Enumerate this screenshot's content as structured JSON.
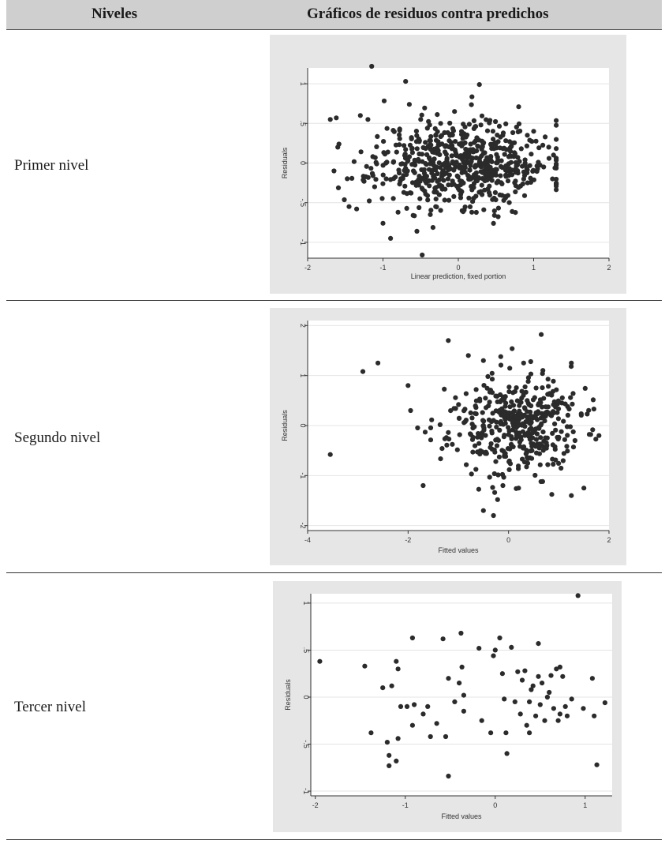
{
  "table": {
    "header": {
      "col_levels": "Niveles",
      "col_plots": "Gráficos de residuos contra predichos"
    },
    "rows": [
      {
        "label": "Primer nivel"
      },
      {
        "label": "Segundo nivel"
      },
      {
        "label": "Tercer nivel"
      }
    ]
  },
  "colors": {
    "header_bg": "#cfcfcf",
    "plot_bg": "#e6e6e6",
    "point": "#2b2b2b"
  },
  "chart_data": [
    {
      "type": "scatter",
      "title": "",
      "xlabel": "Linear prediction, fixed portion",
      "ylabel": "Residuals",
      "xlim": [
        -2,
        2
      ],
      "ylim": [
        -1.2,
        1.2
      ],
      "xticks": [
        -2,
        -1,
        0,
        1,
        2
      ],
      "yticks": [
        -1,
        -0.5,
        0,
        0.5,
        1
      ],
      "ytick_labels": [
        "-1",
        "-.5",
        "0",
        ".5",
        "1"
      ],
      "grid": true,
      "generated": {
        "n": 650,
        "x_mean": 0.05,
        "x_sd": 0.58,
        "x_min": -1.7,
        "x_max": 1.3,
        "y_sd": 0.27,
        "seed": 11
      },
      "points": [
        {
          "x": -1.15,
          "y": 1.22
        },
        {
          "x": -0.7,
          "y": 1.03
        },
        {
          "x": 0.28,
          "y": 0.99
        },
        {
          "x": -0.65,
          "y": 0.74
        },
        {
          "x": -0.5,
          "y": 0.55
        },
        {
          "x": -0.38,
          "y": 0.48
        },
        {
          "x": -0.05,
          "y": 0.65
        },
        {
          "x": 0.3,
          "y": 0.48
        },
        {
          "x": -1.2,
          "y": 0.55
        },
        {
          "x": -1.3,
          "y": 0.6
        },
        {
          "x": -1.7,
          "y": 0.55
        },
        {
          "x": -1.62,
          "y": 0.57
        },
        {
          "x": -1.6,
          "y": 0.2
        },
        {
          "x": -1.65,
          "y": -0.1
        },
        {
          "x": -1.45,
          "y": -0.55
        },
        {
          "x": -1.35,
          "y": -0.58
        },
        {
          "x": -1.0,
          "y": -0.76
        },
        {
          "x": -0.9,
          "y": -0.95
        },
        {
          "x": -0.55,
          "y": -0.86
        },
        {
          "x": -0.48,
          "y": -1.16
        },
        {
          "x": -0.8,
          "y": -0.62
        },
        {
          "x": -0.6,
          "y": -0.66
        },
        {
          "x": 0.05,
          "y": -0.6
        },
        {
          "x": 0.48,
          "y": -0.66
        },
        {
          "x": -0.3,
          "y": -0.55
        },
        {
          "x": 1.0,
          "y": 0.4
        },
        {
          "x": 1.2,
          "y": 0.2
        },
        {
          "x": 1.25,
          "y": -0.2
        }
      ]
    },
    {
      "type": "scatter",
      "title": "",
      "xlabel": "Fitted values",
      "ylabel": "Residuals",
      "xlim": [
        -4,
        2
      ],
      "ylim": [
        -2.1,
        2.1
      ],
      "xticks": [
        -4,
        -2,
        0,
        2
      ],
      "yticks": [
        -2,
        -1,
        0,
        1,
        2
      ],
      "ytick_labels": [
        "-2",
        "-1",
        "0",
        "1",
        "2"
      ],
      "grid": true,
      "generated": {
        "n": 430,
        "x_mean": 0.1,
        "x_sd": 0.65,
        "x_min": -1.95,
        "x_max": 1.75,
        "y_sd": 0.5,
        "seed": 23
      },
      "points": [
        {
          "x": -3.55,
          "y": -0.58
        },
        {
          "x": -2.9,
          "y": 1.08
        },
        {
          "x": -2.6,
          "y": 1.25
        },
        {
          "x": -1.2,
          "y": 1.7
        },
        {
          "x": 0.65,
          "y": 1.82
        },
        {
          "x": -0.8,
          "y": 1.4
        },
        {
          "x": -0.5,
          "y": 1.3
        },
        {
          "x": 1.25,
          "y": 1.25
        },
        {
          "x": -1.7,
          "y": -1.2
        },
        {
          "x": -0.5,
          "y": -1.7
        },
        {
          "x": -0.3,
          "y": -1.8
        },
        {
          "x": 1.25,
          "y": -1.4
        },
        {
          "x": 1.5,
          "y": -1.25
        },
        {
          "x": 0.2,
          "y": -1.25
        },
        {
          "x": 1.7,
          "y": 0.33
        },
        {
          "x": 1.8,
          "y": -0.2
        },
        {
          "x": -2.0,
          "y": 0.8
        },
        {
          "x": -1.95,
          "y": 0.3
        }
      ]
    },
    {
      "type": "scatter",
      "title": "",
      "xlabel": "Fitted values",
      "ylabel": "Residuals",
      "xlim": [
        -2.05,
        1.3
      ],
      "ylim": [
        -1.05,
        1.1
      ],
      "xticks": [
        -2,
        -1,
        0,
        1
      ],
      "yticks": [
        -1,
        -0.5,
        0,
        0.5,
        1
      ],
      "ytick_labels": [
        "-1",
        "-.5",
        "0",
        ".5",
        "1"
      ],
      "grid": true,
      "points": [
        {
          "x": -1.95,
          "y": 0.38
        },
        {
          "x": 0.92,
          "y": 1.08
        },
        {
          "x": -1.45,
          "y": 0.33
        },
        {
          "x": -1.38,
          "y": -0.38
        },
        {
          "x": -1.25,
          "y": 0.1
        },
        {
          "x": -1.2,
          "y": -0.48
        },
        {
          "x": -1.18,
          "y": -0.62
        },
        {
          "x": -1.18,
          "y": -0.73
        },
        {
          "x": -1.15,
          "y": 0.12
        },
        {
          "x": -1.1,
          "y": 0.38
        },
        {
          "x": -1.08,
          "y": 0.3
        },
        {
          "x": -1.1,
          "y": -0.68
        },
        {
          "x": -1.08,
          "y": -0.44
        },
        {
          "x": -1.05,
          "y": -0.1
        },
        {
          "x": -0.98,
          "y": -0.1
        },
        {
          "x": -0.92,
          "y": 0.63
        },
        {
          "x": -0.9,
          "y": -0.08
        },
        {
          "x": -0.92,
          "y": -0.3
        },
        {
          "x": -0.8,
          "y": -0.18
        },
        {
          "x": -0.75,
          "y": -0.1
        },
        {
          "x": -0.72,
          "y": -0.42
        },
        {
          "x": -0.65,
          "y": -0.28
        },
        {
          "x": -0.58,
          "y": 0.62
        },
        {
          "x": -0.55,
          "y": -0.42
        },
        {
          "x": -0.52,
          "y": 0.2
        },
        {
          "x": -0.52,
          "y": -0.84
        },
        {
          "x": -0.45,
          "y": -0.05
        },
        {
          "x": -0.4,
          "y": 0.15
        },
        {
          "x": -0.38,
          "y": 0.68
        },
        {
          "x": -0.37,
          "y": 0.32
        },
        {
          "x": -0.35,
          "y": 0.02
        },
        {
          "x": -0.35,
          "y": -0.15
        },
        {
          "x": -0.18,
          "y": 0.52
        },
        {
          "x": -0.15,
          "y": -0.25
        },
        {
          "x": -0.05,
          "y": -0.38
        },
        {
          "x": -0.02,
          "y": 0.44
        },
        {
          "x": 0.0,
          "y": 0.5
        },
        {
          "x": 0.05,
          "y": 0.63
        },
        {
          "x": 0.08,
          "y": 0.25
        },
        {
          "x": 0.1,
          "y": -0.02
        },
        {
          "x": 0.12,
          "y": -0.38
        },
        {
          "x": 0.13,
          "y": -0.6
        },
        {
          "x": 0.18,
          "y": 0.53
        },
        {
          "x": 0.22,
          "y": -0.05
        },
        {
          "x": 0.25,
          "y": 0.27
        },
        {
          "x": 0.28,
          "y": -0.18
        },
        {
          "x": 0.3,
          "y": 0.18
        },
        {
          "x": 0.33,
          "y": 0.28
        },
        {
          "x": 0.35,
          "y": -0.3
        },
        {
          "x": 0.38,
          "y": -0.05
        },
        {
          "x": 0.38,
          "y": -0.38
        },
        {
          "x": 0.4,
          "y": 0.08
        },
        {
          "x": 0.42,
          "y": 0.12
        },
        {
          "x": 0.45,
          "y": -0.2
        },
        {
          "x": 0.48,
          "y": 0.22
        },
        {
          "x": 0.48,
          "y": 0.57
        },
        {
          "x": 0.5,
          "y": -0.08
        },
        {
          "x": 0.52,
          "y": 0.15
        },
        {
          "x": 0.55,
          "y": -0.25
        },
        {
          "x": 0.58,
          "y": 0.0
        },
        {
          "x": 0.6,
          "y": 0.05
        },
        {
          "x": 0.62,
          "y": 0.23
        },
        {
          "x": 0.65,
          "y": -0.12
        },
        {
          "x": 0.68,
          "y": 0.3
        },
        {
          "x": 0.7,
          "y": -0.25
        },
        {
          "x": 0.72,
          "y": 0.32
        },
        {
          "x": 0.72,
          "y": -0.18
        },
        {
          "x": 0.75,
          "y": 0.22
        },
        {
          "x": 0.78,
          "y": -0.1
        },
        {
          "x": 0.8,
          "y": -0.2
        },
        {
          "x": 0.85,
          "y": -0.02
        },
        {
          "x": 0.98,
          "y": -0.12
        },
        {
          "x": 1.08,
          "y": 0.2
        },
        {
          "x": 1.1,
          "y": -0.2
        },
        {
          "x": 1.13,
          "y": -0.72
        },
        {
          "x": 1.22,
          "y": -0.06
        }
      ]
    }
  ]
}
